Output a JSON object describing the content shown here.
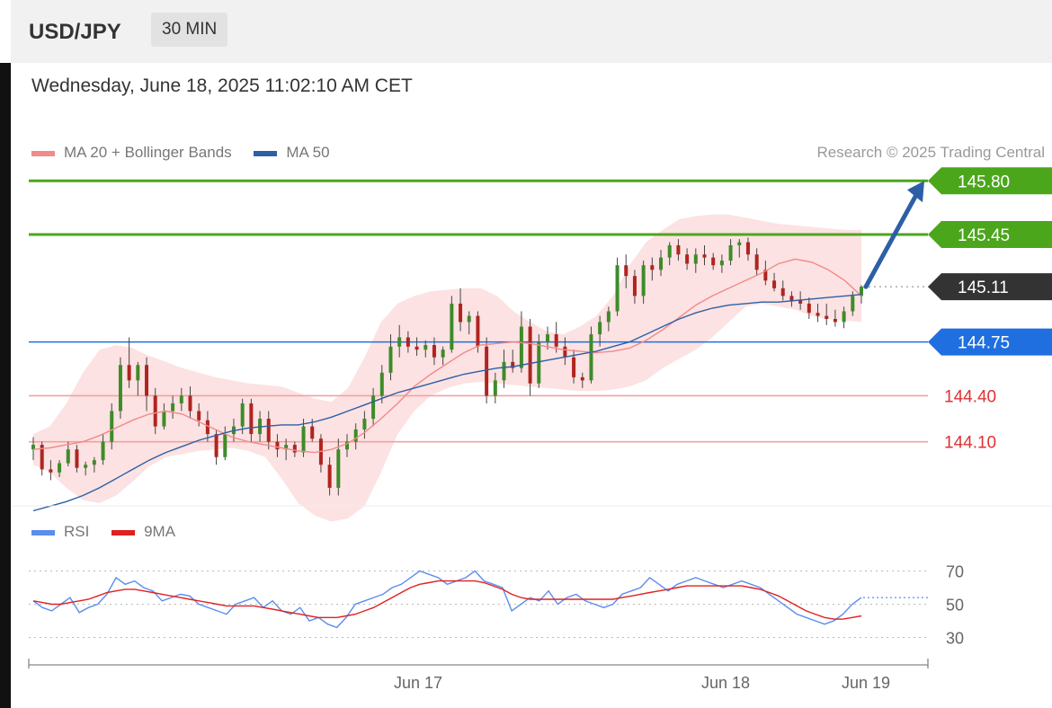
{
  "header": {
    "symbol": "USD/JPY",
    "timeframe": "30 MIN"
  },
  "timestamp": "Wednesday, June 18, 2025 11:02:10 AM CET",
  "legend": {
    "ma20_label": "MA 20 + Bollinger Bands",
    "ma50_label": "MA 50"
  },
  "credit": "Research © 2025 Trading Central",
  "rsi_legend": {
    "rsi_label": "RSI",
    "ma_label": "9MA"
  },
  "colors": {
    "ma20": "#f28a8a",
    "ma50": "#2d5fa6",
    "green": "#4ba61c",
    "blue": "#1f6fe0",
    "dark": "#333333",
    "red": "#e03131",
    "rsi": "#5b8dee",
    "rsi_ma": "#e02020",
    "band": "#fbd6d6"
  },
  "chart_data": [
    {
      "type": "candlestick",
      "title": "USD/JPY",
      "ylim": [
        143.7,
        146.1
      ],
      "x_ticks": [
        "Jun 17",
        "Jun 18",
        "Jun 19"
      ],
      "levels": [
        {
          "label": "145.80",
          "value": 145.8,
          "style": "green-badge"
        },
        {
          "label": "145.45",
          "value": 145.45,
          "style": "green-badge"
        },
        {
          "label": "145.11",
          "value": 145.11,
          "style": "dark-badge"
        },
        {
          "label": "144.75",
          "value": 144.75,
          "style": "blue-badge"
        },
        {
          "label": "144.40",
          "value": 144.4,
          "style": "red-text"
        },
        {
          "label": "144.10",
          "value": 144.1,
          "style": "red-text"
        }
      ],
      "forecast_arrow": {
        "from": 145.11,
        "to": 145.8
      },
      "ma20": [
        144.05,
        144.06,
        144.08,
        144.1,
        144.14,
        144.19,
        144.24,
        144.28,
        144.3,
        144.28,
        144.23,
        144.18,
        144.13,
        144.1,
        144.08,
        144.06,
        144.04,
        144.03,
        144.05,
        144.09,
        144.16,
        144.25,
        144.35,
        144.46,
        144.54,
        144.61,
        144.68,
        144.73,
        144.74,
        144.75,
        144.74,
        144.72,
        144.7,
        144.69,
        144.68,
        144.69,
        144.71,
        144.76,
        144.83,
        144.91,
        144.99,
        145.05,
        145.1,
        145.15,
        145.2,
        145.26,
        145.29,
        145.27,
        145.22,
        145.15,
        145.05
      ],
      "ma50": [
        143.65,
        143.68,
        143.71,
        143.75,
        143.8,
        143.86,
        143.92,
        143.98,
        144.03,
        144.07,
        144.11,
        144.14,
        144.17,
        144.19,
        144.2,
        144.21,
        144.21,
        144.23,
        144.26,
        144.3,
        144.34,
        144.38,
        144.42,
        144.45,
        144.48,
        144.51,
        144.54,
        144.56,
        144.58,
        144.59,
        144.61,
        144.63,
        144.65,
        144.67,
        144.69,
        144.72,
        144.75,
        144.8,
        144.85,
        144.9,
        144.94,
        144.97,
        144.99,
        145.0,
        145.01,
        145.01,
        145.02,
        145.03,
        145.04,
        145.05,
        145.06
      ],
      "band_upper": [
        144.15,
        144.2,
        144.35,
        144.55,
        144.7,
        144.73,
        144.71,
        144.66,
        144.62,
        144.58,
        144.55,
        144.52,
        144.5,
        144.48,
        144.47,
        144.46,
        144.42,
        144.38,
        144.36,
        144.45,
        144.65,
        144.88,
        145.0,
        145.05,
        145.08,
        145.09,
        145.1,
        145.1,
        145.05,
        144.95,
        144.88,
        144.82,
        144.8,
        144.85,
        144.92,
        145.05,
        145.25,
        145.4,
        145.48,
        145.55,
        145.57,
        145.58,
        145.58,
        145.56,
        145.54,
        145.52,
        145.51,
        145.5,
        145.49,
        145.48,
        145.48
      ],
      "band_lower": [
        143.95,
        143.9,
        143.8,
        143.72,
        143.7,
        143.75,
        143.84,
        143.94,
        144.0,
        144.02,
        144.04,
        144.05,
        144.06,
        144.04,
        144.0,
        143.86,
        143.7,
        143.62,
        143.58,
        143.6,
        143.68,
        143.9,
        144.15,
        144.3,
        144.4,
        144.45,
        144.48,
        144.49,
        144.48,
        144.47,
        144.46,
        144.45,
        144.44,
        144.43,
        144.43,
        144.44,
        144.46,
        144.5,
        144.58,
        144.64,
        144.7,
        144.78,
        144.88,
        144.98,
        145.0,
        144.98,
        144.96,
        144.92,
        144.9,
        144.89,
        144.88
      ],
      "candles": [
        [
          144.05,
          144.13,
          143.98,
          144.08
        ],
        [
          144.08,
          144.1,
          143.88,
          143.92
        ],
        [
          143.92,
          143.98,
          143.85,
          143.9
        ],
        [
          143.9,
          143.98,
          143.87,
          143.96
        ],
        [
          143.96,
          144.1,
          143.94,
          144.05
        ],
        [
          144.05,
          144.08,
          143.9,
          143.93
        ],
        [
          143.93,
          143.97,
          143.88,
          143.95
        ],
        [
          143.95,
          144.0,
          143.9,
          143.98
        ],
        [
          143.98,
          144.15,
          143.95,
          144.1
        ],
        [
          144.1,
          144.35,
          144.05,
          144.3
        ],
        [
          144.3,
          144.65,
          144.25,
          144.6
        ],
        [
          144.6,
          144.78,
          144.45,
          144.5
        ],
        [
          144.5,
          144.62,
          144.4,
          144.6
        ],
        [
          144.6,
          144.65,
          144.3,
          144.4
        ],
        [
          144.4,
          144.45,
          144.15,
          144.2
        ],
        [
          144.2,
          144.35,
          144.18,
          144.3
        ],
        [
          144.3,
          144.4,
          144.25,
          144.35
        ],
        [
          144.35,
          144.45,
          144.3,
          144.4
        ],
        [
          144.4,
          144.46,
          144.25,
          144.3
        ],
        [
          144.3,
          144.35,
          144.2,
          144.24
        ],
        [
          144.24,
          144.3,
          144.1,
          144.15
        ],
        [
          144.15,
          144.18,
          143.95,
          144.0
        ],
        [
          144.0,
          144.2,
          143.98,
          144.15
        ],
        [
          144.15,
          144.25,
          144.1,
          144.2
        ],
        [
          144.2,
          144.38,
          144.15,
          144.35
        ],
        [
          144.35,
          144.38,
          144.1,
          144.15
        ],
        [
          144.15,
          144.3,
          144.1,
          144.25
        ],
        [
          144.25,
          144.3,
          144.05,
          144.1
        ],
        [
          144.1,
          144.15,
          144.0,
          144.05
        ],
        [
          144.05,
          144.12,
          143.98,
          144.08
        ],
        [
          144.08,
          144.1,
          144.0,
          144.03
        ],
        [
          144.03,
          144.25,
          144.0,
          144.2
        ],
        [
          144.2,
          144.25,
          144.1,
          144.12
        ],
        [
          144.12,
          144.15,
          143.9,
          143.95
        ],
        [
          143.95,
          144.0,
          143.75,
          143.8
        ],
        [
          143.8,
          144.12,
          143.75,
          144.05
        ],
        [
          144.05,
          144.15,
          144.0,
          144.1
        ],
        [
          144.1,
          144.22,
          144.05,
          144.18
        ],
        [
          144.18,
          144.3,
          144.12,
          144.25
        ],
        [
          144.25,
          144.45,
          144.2,
          144.4
        ],
        [
          144.4,
          144.6,
          144.35,
          144.55
        ],
        [
          144.55,
          144.8,
          144.5,
          144.72
        ],
        [
          144.72,
          144.86,
          144.65,
          144.78
        ],
        [
          144.78,
          144.82,
          144.68,
          144.72
        ],
        [
          144.72,
          144.78,
          144.66,
          144.7
        ],
        [
          144.7,
          144.76,
          144.65,
          144.73
        ],
        [
          144.73,
          144.78,
          144.6,
          144.65
        ],
        [
          144.65,
          144.72,
          144.6,
          144.7
        ],
        [
          144.7,
          145.05,
          144.68,
          145.0
        ],
        [
          145.0,
          145.1,
          144.82,
          144.88
        ],
        [
          144.88,
          144.95,
          144.8,
          144.92
        ],
        [
          144.92,
          144.95,
          144.68,
          144.72
        ],
        [
          144.72,
          144.78,
          144.35,
          144.4
        ],
        [
          144.4,
          144.55,
          144.35,
          144.5
        ],
        [
          144.5,
          144.7,
          144.45,
          144.62
        ],
        [
          144.62,
          144.7,
          144.55,
          144.58
        ],
        [
          144.58,
          144.95,
          144.55,
          144.85
        ],
        [
          144.85,
          144.9,
          144.4,
          144.48
        ],
        [
          144.48,
          144.8,
          144.45,
          144.75
        ],
        [
          144.75,
          144.85,
          144.7,
          144.8
        ],
        [
          144.8,
          144.88,
          144.68,
          144.72
        ],
        [
          144.72,
          144.78,
          144.6,
          144.65
        ],
        [
          144.65,
          144.7,
          144.48,
          144.52
        ],
        [
          144.52,
          144.55,
          144.45,
          144.5
        ],
        [
          144.5,
          144.85,
          144.48,
          144.8
        ],
        [
          144.8,
          144.92,
          144.72,
          144.88
        ],
        [
          144.88,
          144.98,
          144.82,
          144.95
        ],
        [
          144.95,
          145.3,
          144.92,
          145.25
        ],
        [
          145.25,
          145.32,
          145.1,
          145.18
        ],
        [
          145.18,
          145.22,
          145.0,
          145.05
        ],
        [
          145.05,
          145.28,
          145.0,
          145.25
        ],
        [
          145.25,
          145.3,
          145.15,
          145.22
        ],
        [
          145.22,
          145.35,
          145.18,
          145.3
        ],
        [
          145.3,
          145.4,
          145.25,
          145.38
        ],
        [
          145.38,
          145.42,
          145.28,
          145.32
        ],
        [
          145.32,
          145.36,
          145.22,
          145.26
        ],
        [
          145.26,
          145.36,
          145.2,
          145.32
        ],
        [
          145.32,
          145.38,
          145.25,
          145.3
        ],
        [
          145.3,
          145.33,
          145.22,
          145.25
        ],
        [
          145.25,
          145.32,
          145.2,
          145.28
        ],
        [
          145.28,
          145.42,
          145.25,
          145.38
        ],
        [
          145.38,
          145.42,
          145.3,
          145.4
        ],
        [
          145.4,
          145.43,
          145.28,
          145.32
        ],
        [
          145.32,
          145.36,
          145.18,
          145.22
        ],
        [
          145.22,
          145.28,
          145.12,
          145.15
        ],
        [
          145.15,
          145.2,
          145.08,
          145.1
        ],
        [
          145.1,
          145.15,
          145.02,
          145.05
        ],
        [
          145.05,
          145.08,
          144.98,
          145.02
        ],
        [
          145.02,
          145.08,
          144.96,
          145.0
        ],
        [
          145.0,
          145.04,
          144.9,
          144.94
        ],
        [
          144.94,
          145.0,
          144.88,
          144.92
        ],
        [
          144.92,
          145.0,
          144.86,
          144.9
        ],
        [
          144.9,
          144.96,
          144.85,
          144.88
        ],
        [
          144.88,
          144.98,
          144.84,
          144.95
        ],
        [
          144.95,
          145.08,
          144.92,
          145.05
        ],
        [
          145.05,
          145.12,
          145.0,
          145.11
        ]
      ]
    },
    {
      "type": "line",
      "title": "RSI",
      "ylim": [
        20,
        80
      ],
      "y_ticks": [
        70,
        50,
        30
      ],
      "series": [
        {
          "name": "RSI",
          "values": [
            52,
            48,
            46,
            50,
            54,
            45,
            48,
            50,
            56,
            66,
            62,
            64,
            60,
            58,
            52,
            54,
            56,
            55,
            50,
            48,
            46,
            44,
            50,
            52,
            54,
            48,
            52,
            46,
            44,
            48,
            40,
            42,
            38,
            36,
            42,
            50,
            52,
            54,
            56,
            60,
            62,
            66,
            70,
            68,
            66,
            62,
            64,
            66,
            70,
            64,
            62,
            60,
            46,
            50,
            54,
            52,
            58,
            50,
            54,
            56,
            52,
            50,
            48,
            50,
            56,
            58,
            60,
            66,
            62,
            58,
            62,
            64,
            66,
            64,
            62,
            60,
            62,
            64,
            62,
            60,
            56,
            52,
            48,
            44,
            42,
            40,
            38,
            40,
            44,
            50,
            54
          ]
        },
        {
          "name": "9MA",
          "values": [
            52,
            51,
            50,
            50,
            51,
            52,
            53,
            55,
            57,
            58,
            59,
            59,
            58,
            57,
            56,
            55,
            54,
            53,
            52,
            51,
            50,
            49,
            49,
            49,
            49,
            48,
            47,
            46,
            45,
            44,
            43,
            42,
            42,
            42,
            43,
            44,
            46,
            48,
            51,
            54,
            57,
            60,
            62,
            63,
            64,
            64,
            64,
            64,
            64,
            63,
            61,
            59,
            56,
            54,
            53,
            53,
            53,
            53,
            53,
            53,
            53,
            53,
            53,
            53,
            54,
            55,
            56,
            57,
            58,
            59,
            60,
            61,
            61,
            61,
            61,
            61,
            61,
            61,
            60,
            59,
            57,
            55,
            52,
            49,
            46,
            44,
            42,
            41,
            41,
            42,
            43
          ]
        }
      ]
    }
  ]
}
